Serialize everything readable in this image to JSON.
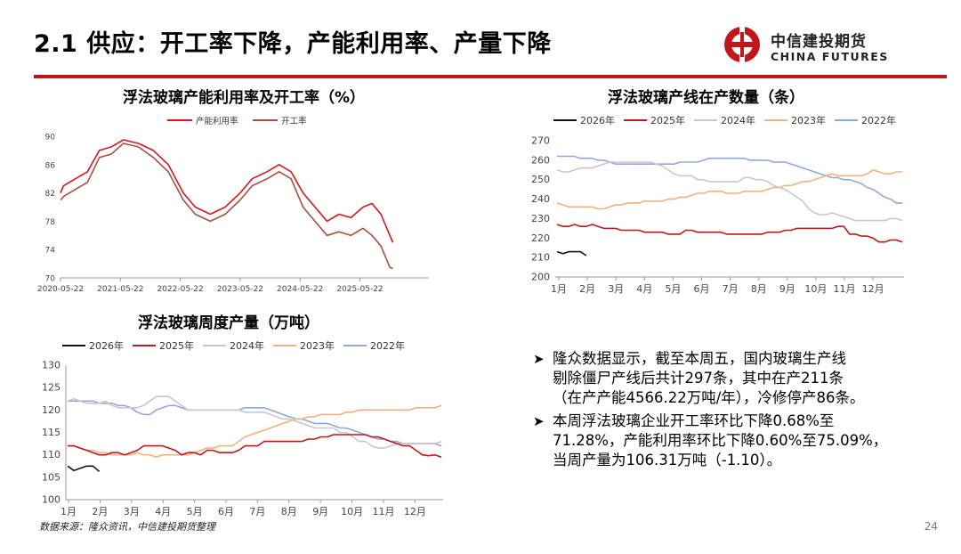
{
  "slide": {
    "title": "2.1 供应：开工率下降，产能利用率、产量下降",
    "logo_cn": "中信建投期货",
    "logo_en": "CHINA FUTURES",
    "source": "数据来源：隆众资讯，中信建投期货整理",
    "page_number": "24",
    "accent": "#c0161c"
  },
  "bullets": [
    {
      "lines": [
        "隆众数据显示，截至本周五，国内玻璃生产线",
        "剔除僵尸产线后共计297条，其中在产211条",
        "（在产产能4566.22万吨/年），冷修停产86条。"
      ]
    },
    {
      "lines": [
        "本周浮法玻璃企业开工率环比下降0.68%至",
        "71.28%，产能利用率环比下降0.60%至75.09%，",
        "当周产量为106.31万吨（-1.10）。"
      ]
    }
  ],
  "chart_data": [
    {
      "type": "line",
      "title": "浮法玻璃产能利用率及开工率（%）",
      "ylim": [
        70,
        90
      ],
      "yticks": [
        "70",
        "74",
        "78",
        "82",
        "86",
        "90"
      ],
      "xticks": [
        "2020-05-22",
        "2021-05-22",
        "2022-05-22",
        "2023-05-22",
        "2024-05-22",
        "2025-05-22"
      ],
      "series": [
        {
          "name": "产能利用率",
          "color": "#d9151b",
          "points": [
            [
              0,
              82
            ],
            [
              0.05,
              83
            ],
            [
              0.25,
              84
            ],
            [
              0.45,
              85
            ],
            [
              0.65,
              88
            ],
            [
              0.85,
              88.5
            ],
            [
              1.05,
              89.5
            ],
            [
              1.3,
              89
            ],
            [
              1.55,
              88
            ],
            [
              1.8,
              86
            ],
            [
              2.05,
              82
            ],
            [
              2.25,
              80
            ],
            [
              2.5,
              79
            ],
            [
              2.75,
              80
            ],
            [
              3.0,
              82
            ],
            [
              3.2,
              84
            ],
            [
              3.45,
              85
            ],
            [
              3.65,
              86
            ],
            [
              3.85,
              85
            ],
            [
              4.05,
              82
            ],
            [
              4.25,
              80
            ],
            [
              4.45,
              78
            ],
            [
              4.65,
              79
            ],
            [
              4.85,
              78.5
            ],
            [
              5.05,
              80
            ],
            [
              5.2,
              80.5
            ],
            [
              5.35,
              79
            ],
            [
              5.5,
              76
            ],
            [
              5.55,
              75
            ]
          ]
        },
        {
          "name": "开工率",
          "color": "#a85040",
          "points": [
            [
              0,
              81
            ],
            [
              0.05,
              81.5
            ],
            [
              0.25,
              82.5
            ],
            [
              0.45,
              83.5
            ],
            [
              0.65,
              87
            ],
            [
              0.85,
              87.5
            ],
            [
              1.05,
              89
            ],
            [
              1.3,
              88.5
            ],
            [
              1.55,
              87
            ],
            [
              1.8,
              85
            ],
            [
              2.05,
              81
            ],
            [
              2.25,
              79
            ],
            [
              2.5,
              78
            ],
            [
              2.75,
              79
            ],
            [
              3.0,
              81
            ],
            [
              3.2,
              83
            ],
            [
              3.45,
              84
            ],
            [
              3.65,
              85
            ],
            [
              3.85,
              84
            ],
            [
              4.05,
              80
            ],
            [
              4.25,
              78
            ],
            [
              4.45,
              76
            ],
            [
              4.65,
              76.5
            ],
            [
              4.85,
              76
            ],
            [
              5.05,
              77
            ],
            [
              5.2,
              76
            ],
            [
              5.35,
              74.5
            ],
            [
              5.5,
              71.5
            ],
            [
              5.55,
              71.3
            ]
          ]
        }
      ]
    },
    {
      "type": "line",
      "title": "浮法玻璃产线在产数量（条）",
      "ylim": [
        200,
        270
      ],
      "yticks": [
        "200",
        "210",
        "220",
        "230",
        "240",
        "250",
        "260",
        "270"
      ],
      "xticks": [
        "1月",
        "2月",
        "3月",
        "4月",
        "5月",
        "6月",
        "7月",
        "8月",
        "9月",
        "10月",
        "11月",
        "12月"
      ],
      "series": [
        {
          "name": "2026年",
          "color": "#111111",
          "values": [
            213,
            212,
            213,
            213,
            213,
            211
          ]
        },
        {
          "name": "2025年",
          "color": "#c0161c",
          "values": [
            227,
            226,
            226,
            227,
            226,
            226,
            227,
            226,
            225,
            225,
            225,
            224,
            224,
            224,
            224,
            223,
            223,
            223,
            223,
            222,
            222,
            222,
            224,
            224,
            223,
            223,
            223,
            223,
            223,
            222,
            222,
            222,
            222,
            222,
            222,
            222,
            223,
            223,
            223,
            224,
            224,
            225,
            225,
            225,
            225,
            225,
            225,
            225,
            226,
            226,
            222,
            222,
            221,
            221,
            220,
            218,
            218,
            219,
            219,
            218
          ]
        },
        {
          "name": "2024年",
          "color": "#c8c8c8",
          "values": [
            255,
            254,
            254,
            255,
            256,
            256,
            256,
            257,
            258,
            259,
            259,
            259,
            259,
            259,
            259,
            259,
            259,
            258,
            257,
            255,
            253,
            252,
            252,
            252,
            250,
            250,
            249,
            249,
            249,
            249,
            249,
            249,
            251,
            251,
            250,
            250,
            249,
            247,
            246,
            245,
            243,
            241,
            239,
            235,
            233,
            232,
            232,
            233,
            232,
            231,
            230,
            229,
            229,
            229,
            229,
            229,
            229,
            230,
            230,
            229
          ]
        },
        {
          "name": "2023年",
          "color": "#f0b27a",
          "values": [
            238,
            237,
            236,
            236,
            236,
            236,
            236,
            235,
            235,
            236,
            237,
            237,
            238,
            238,
            238,
            239,
            239,
            239,
            239,
            240,
            240,
            241,
            241,
            242,
            243,
            243,
            244,
            244,
            244,
            243,
            243,
            243,
            244,
            244,
            244,
            244,
            245,
            246,
            246,
            247,
            247,
            248,
            249,
            249,
            250,
            251,
            252,
            253,
            252,
            252,
            252,
            252,
            252,
            253,
            255,
            254,
            253,
            253,
            254,
            254
          ]
        },
        {
          "name": "2022年",
          "color": "#8ea9d8",
          "values": [
            262,
            262,
            262,
            262,
            261,
            261,
            261,
            260,
            260,
            259,
            258,
            258,
            258,
            258,
            258,
            258,
            258,
            258,
            258,
            258,
            258,
            259,
            259,
            259,
            259,
            260,
            261,
            261,
            261,
            261,
            261,
            261,
            261,
            260,
            260,
            260,
            260,
            259,
            259,
            259,
            258,
            257,
            256,
            255,
            254,
            253,
            252,
            251,
            251,
            250,
            250,
            249,
            248,
            246,
            245,
            243,
            241,
            240,
            238,
            238
          ]
        }
      ]
    },
    {
      "type": "line",
      "title": "浮法玻璃周度产量（万吨）",
      "ylim": [
        100,
        130
      ],
      "yticks": [
        "100",
        "105",
        "110",
        "115",
        "120",
        "125",
        "130"
      ],
      "xticks": [
        "1月",
        "2月",
        "3月",
        "4月",
        "5月",
        "6月",
        "7月",
        "8月",
        "9月",
        "10月",
        "11月",
        "12月"
      ],
      "series": [
        {
          "name": "2026年",
          "color": "#111111",
          "values": [
            107.5,
            106.5,
            107,
            107.5,
            107.5,
            106.3
          ]
        },
        {
          "name": "2025年",
          "color": "#c0161c",
          "values": [
            112,
            112,
            111.5,
            111,
            110.5,
            110,
            110,
            110.5,
            110.5,
            110,
            110.5,
            111,
            112,
            112,
            112,
            112,
            111.5,
            111,
            110,
            110.5,
            110.5,
            110,
            111,
            111,
            110.5,
            110.5,
            110.5,
            111,
            112,
            112,
            112,
            113,
            113,
            113,
            113,
            113,
            113,
            113,
            113.5,
            113.5,
            114,
            114,
            114.5,
            114.5,
            114.5,
            114.5,
            114.5,
            114.5,
            114,
            114,
            113.5,
            113,
            112.5,
            112,
            112,
            111,
            110,
            109.8,
            110,
            109.5
          ]
        },
        {
          "name": "2024年",
          "color": "#c8c8c8",
          "values": [
            122,
            122.5,
            122,
            121.5,
            121.5,
            121.5,
            122,
            121,
            120.5,
            120.5,
            120.5,
            120.5,
            121,
            122,
            123,
            123,
            123,
            122,
            121,
            120,
            120,
            120,
            120,
            120,
            120,
            120,
            120,
            120,
            119.5,
            119.5,
            119.5,
            119.5,
            119,
            118.5,
            118,
            118,
            117.5,
            117,
            116.5,
            116,
            116,
            116,
            116,
            115,
            115,
            114,
            113,
            113,
            112,
            111.5,
            111.5,
            112,
            112.5,
            112.5,
            112.5,
            112.5,
            112.5,
            112.5,
            112.5,
            113
          ]
        },
        {
          "name": "2023年",
          "color": "#f0b27a",
          "values": [
            112,
            112,
            111.5,
            111,
            111,
            110.5,
            110.5,
            110,
            110,
            110,
            110,
            110.5,
            110,
            110,
            109.5,
            110,
            110,
            110,
            110,
            110,
            110.5,
            111,
            111.5,
            111.5,
            112,
            112,
            112,
            113,
            114,
            114.5,
            115,
            115.5,
            116,
            116.5,
            117,
            117.5,
            118,
            118,
            118.5,
            118.5,
            119,
            119,
            119,
            119,
            119.5,
            119.5,
            120,
            120,
            120,
            120,
            120,
            120,
            120,
            120,
            120,
            120.5,
            120.5,
            120.5,
            120.5,
            121
          ]
        },
        {
          "name": "2022年",
          "color": "#8ea9d8",
          "values": [
            122,
            122,
            122,
            122,
            122,
            121.5,
            121.5,
            121.5,
            121,
            121,
            120.5,
            119.5,
            119,
            119,
            120,
            120.5,
            121,
            121,
            120.5,
            120,
            120,
            120,
            120,
            120,
            120,
            120,
            120,
            120,
            120.5,
            120.5,
            120.5,
            120.5,
            120,
            119.5,
            119,
            118.5,
            118,
            118,
            117.5,
            117,
            117,
            117,
            116.5,
            116,
            116,
            115.5,
            115,
            114.5,
            114,
            113.5,
            113.5,
            113,
            113,
            112.5,
            112.5,
            112.5,
            112.5,
            112.5,
            112.5,
            112
          ]
        }
      ]
    }
  ]
}
